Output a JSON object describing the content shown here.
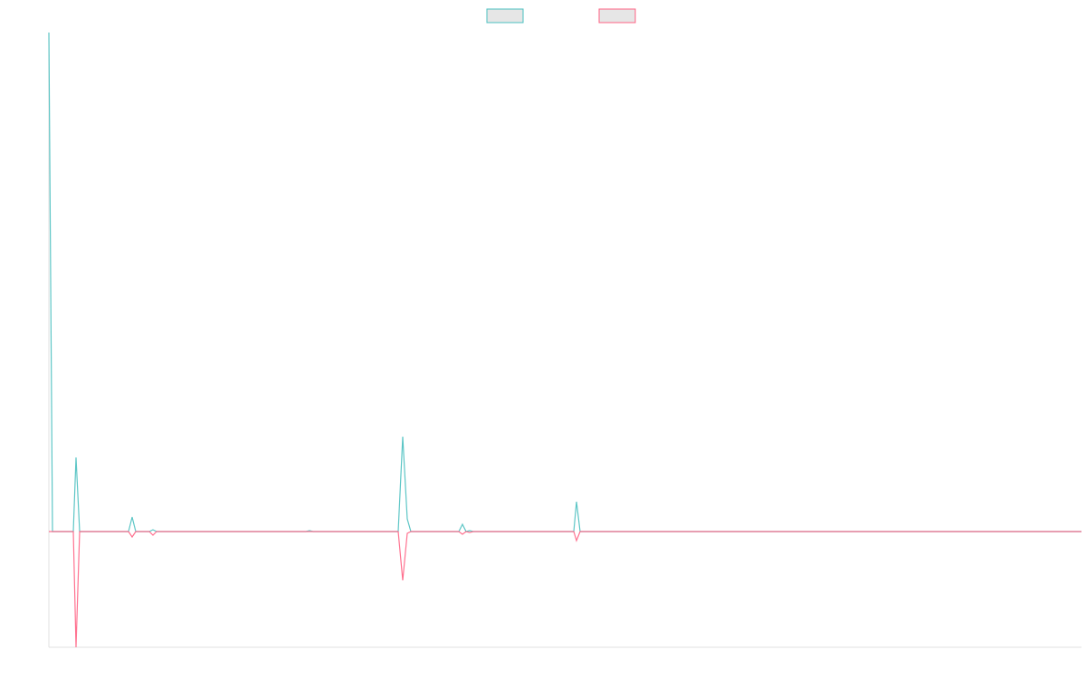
{
  "chart_data": {
    "type": "line",
    "x": [
      0,
      4,
      27,
      30,
      34,
      88,
      92,
      96,
      111,
      115,
      119,
      284,
      288,
      292,
      386,
      391,
      396,
      400,
      453,
      457,
      461,
      465,
      469,
      580,
      583,
      587,
      1141
    ],
    "series": [
      {
        "color": "#4bc0c0",
        "values": [
          552,
          0,
          0,
          82,
          0,
          0,
          16,
          0,
          0,
          2,
          0,
          0,
          1,
          0,
          0,
          105,
          14,
          0,
          0,
          8,
          0,
          1,
          0,
          0,
          33,
          0,
          0
        ]
      },
      {
        "color": "#ff6384",
        "values": [
          0,
          0,
          0,
          -128,
          0,
          0,
          -6,
          0,
          0,
          -4,
          0,
          0,
          0,
          0,
          0,
          -54,
          -2,
          0,
          0,
          -3,
          0,
          -1,
          0,
          0,
          -10,
          0,
          0
        ]
      }
    ],
    "xlim": [
      0,
      1141
    ],
    "ylim": [
      -128,
      552
    ],
    "legend": "top"
  }
}
